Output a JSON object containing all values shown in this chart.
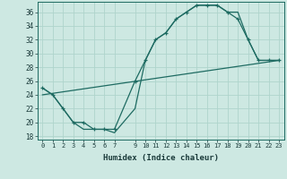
{
  "xlabel": "Humidex (Indice chaleur)",
  "bg_color": "#cde8e2",
  "grid_color": "#afd4cc",
  "line_color": "#1e6b62",
  "xlim": [
    -0.5,
    23.5
  ],
  "ylim": [
    17.5,
    37.5
  ],
  "yticks": [
    18,
    20,
    22,
    24,
    26,
    28,
    30,
    32,
    34,
    36
  ],
  "xticks": [
    0,
    1,
    2,
    3,
    4,
    5,
    6,
    7,
    9,
    10,
    11,
    12,
    13,
    14,
    15,
    16,
    17,
    18,
    19,
    20,
    21,
    22,
    23
  ],
  "line1_x": [
    0,
    1,
    2,
    3,
    4,
    5,
    6,
    7,
    9,
    10,
    11,
    12,
    13,
    14,
    15,
    16,
    17,
    18,
    19,
    20,
    21,
    22,
    23
  ],
  "line1_y": [
    25,
    24,
    22,
    20,
    20,
    19,
    19,
    19,
    26,
    29,
    32,
    33,
    35,
    36,
    37,
    37,
    37,
    36,
    35,
    32,
    29,
    29,
    29
  ],
  "line2_x": [
    0,
    1,
    2,
    3,
    4,
    5,
    6,
    7,
    9,
    10,
    11,
    12,
    13,
    14,
    15,
    16,
    17,
    18,
    19,
    20,
    21,
    22,
    23
  ],
  "line2_y": [
    25,
    24,
    22,
    20,
    19,
    19,
    19,
    18.5,
    22,
    29,
    32,
    33,
    35,
    36,
    37,
    37,
    37,
    36,
    36,
    32,
    29,
    29,
    29
  ],
  "line3_x": [
    0,
    23
  ],
  "line3_y": [
    24,
    29
  ]
}
